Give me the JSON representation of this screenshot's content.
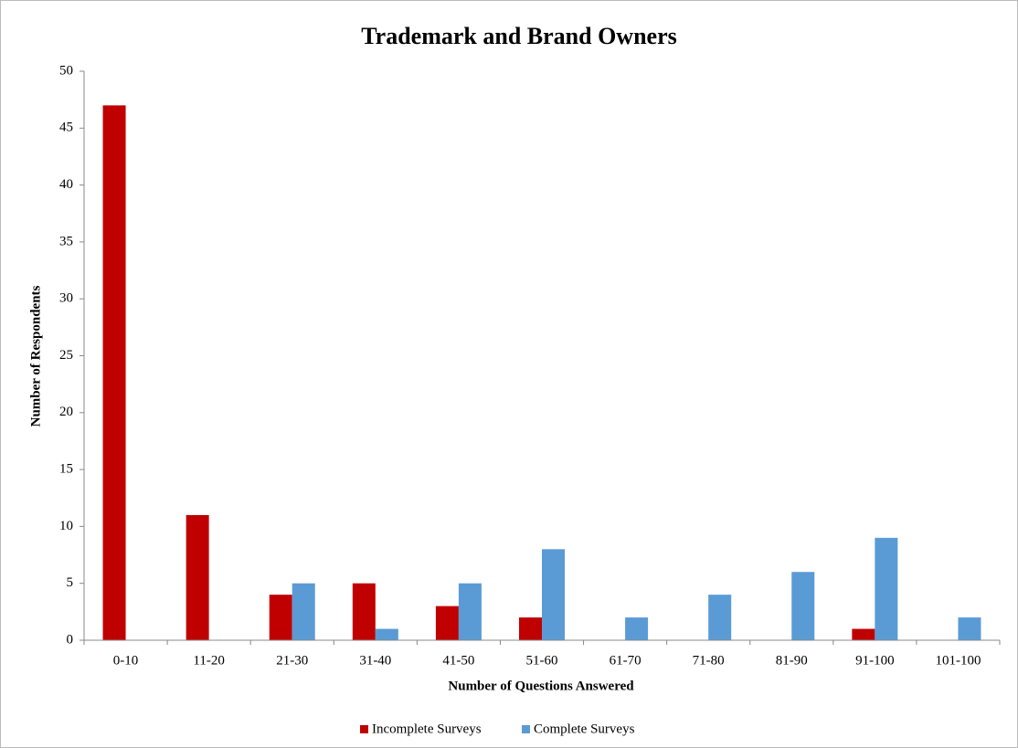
{
  "chart_data": {
    "type": "bar",
    "title": "Trademark and Brand Owners",
    "x_label": "Number of Questions Answered",
    "y_label": "Number of Respondents",
    "categories": [
      "0-10",
      "11-20",
      "21-30",
      "31-40",
      "41-50",
      "51-60",
      "61-70",
      "71-80",
      "81-90",
      "91-100",
      "101-100"
    ],
    "series": [
      {
        "name": "Incomplete Surveys",
        "color": "#c00000",
        "values": [
          47,
          11,
          4,
          5,
          3,
          2,
          0,
          0,
          0,
          1,
          0
        ]
      },
      {
        "name": "Complete Surveys",
        "color": "#5b9bd5",
        "values": [
          0,
          0,
          5,
          1,
          5,
          8,
          2,
          4,
          6,
          9,
          2
        ]
      }
    ],
    "ylim": [
      0,
      50
    ],
    "yticks": [
      0,
      5,
      10,
      15,
      20,
      25,
      30,
      35,
      40,
      45,
      50
    ],
    "grid": false,
    "legend": "bottom"
  }
}
